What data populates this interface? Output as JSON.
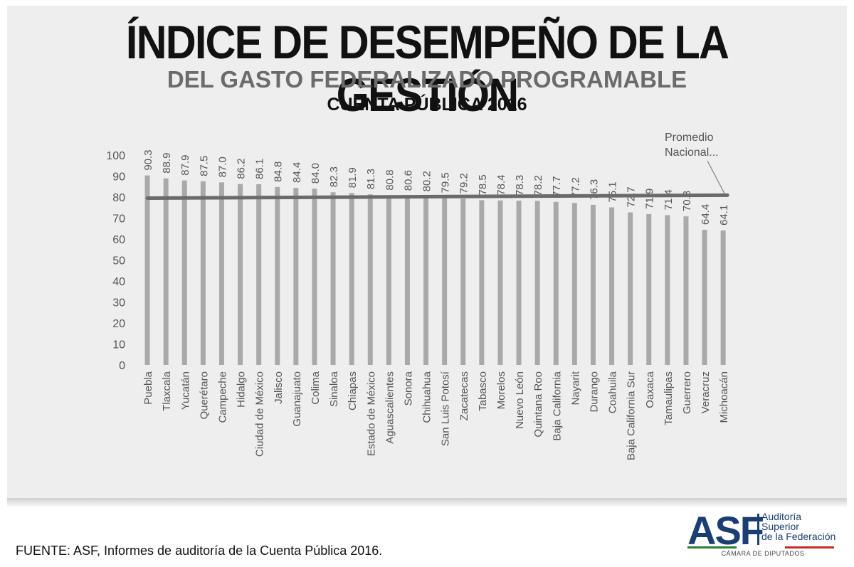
{
  "header": {
    "title": "ÍNDICE DE DESEMPEÑO DE LA GESTIÓN",
    "subtitle": "DEL GASTO FEDERALIZADO PROGRAMABLE",
    "subtitle2": "CUENTA PÚBLICA 2016"
  },
  "chart_data": {
    "type": "bar",
    "categories": [
      "Puebla",
      "Tlaxcala",
      "Yucatán",
      "Querétaro",
      "Campeche",
      "Hidalgo",
      "Ciudad de México",
      "Jalisco",
      "Guanajuato",
      "Colima",
      "Sinaloa",
      "Chiapas",
      "Estado de México",
      "Aguascalientes",
      "Sonora",
      "Chihuahua",
      "San Luis Potosí",
      "Zacatecas",
      "Tabasco",
      "Morelos",
      "Nuevo León",
      "Quintana Roo",
      "Baja California",
      "Nayarit",
      "Durango",
      "Coahuila",
      "Baja California Sur",
      "Oaxaca",
      "Tamaulipas",
      "Guerrero",
      "Veracruz",
      "Michoacán"
    ],
    "values": [
      90.3,
      88.9,
      87.9,
      87.5,
      87.0,
      86.2,
      86.1,
      84.8,
      84.4,
      84.0,
      82.3,
      81.9,
      81.3,
      80.8,
      80.6,
      80.2,
      79.5,
      79.2,
      78.5,
      78.4,
      78.3,
      78.2,
      77.7,
      77.2,
      76.3,
      75.1,
      72.7,
      71.9,
      71.4,
      70.8,
      64.4,
      64.1
    ],
    "value_labels": [
      "90.3",
      "88.9",
      "87.9",
      "87.5",
      "87.0",
      "86.2",
      "86.1",
      "84.8",
      "84.4",
      "84.0",
      "82.3",
      "81.9",
      "81.3",
      "80.8",
      "80.6",
      "80.2",
      "79.5",
      "79.2",
      "78.5",
      "78.4",
      "78.3",
      "78.2",
      "77.7",
      "77.2",
      "76.3",
      "75.1",
      "72.7",
      "71.9",
      "71.4",
      "70.8",
      "64.4",
      "64.1"
    ],
    "ylim": [
      0,
      100
    ],
    "yticks": [
      "0",
      "10",
      "20",
      "30",
      "40",
      "50",
      "60",
      "70",
      "80",
      "90",
      "100"
    ],
    "average": {
      "label": "Promedio Nacional...",
      "label_lines": [
        "Promedio",
        "Nacional..."
      ],
      "value_start": 79.5,
      "value_end": 80.9
    },
    "grid": false,
    "legend": "none",
    "colors": {
      "bar": "#a9a9ab",
      "average_line": "#6a6a6c",
      "text": "#555555"
    }
  },
  "footer": {
    "source": "FUENTE: ASF, Informes de auditoría de la Cuenta Pública 2016.",
    "logo": {
      "acronym": "ASF",
      "name_lines": [
        "Auditoría",
        "Superior",
        "de la Federación"
      ],
      "camara": "CÁMARA DE DIPUTADOS",
      "colors": {
        "blue": "#1a3e72",
        "green": "#2e7d32",
        "red": "#c62828"
      }
    }
  }
}
